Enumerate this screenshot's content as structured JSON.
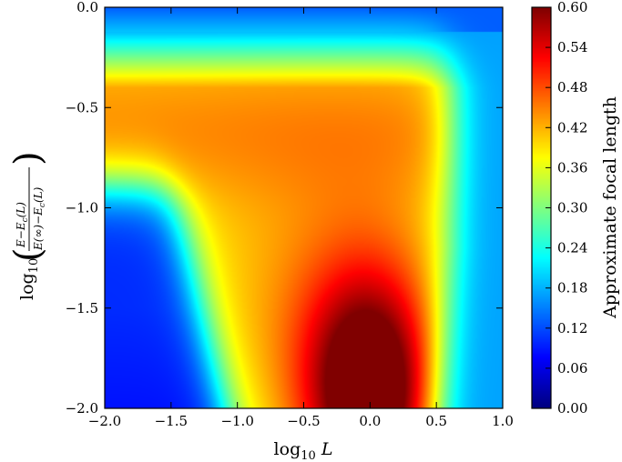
{
  "chart_data": {
    "type": "heatmap",
    "xlabel": "log10 L",
    "ylabel": "log10 ((E − Ec(L)) / (E(∞) − Ec(L)))",
    "xlim": [
      -2.0,
      1.0
    ],
    "ylim": [
      -2.0,
      0.0
    ],
    "x_ticks": [
      "−2.0",
      "−1.5",
      "−1.0",
      "−0.5",
      "0.0",
      "0.5",
      "1.0"
    ],
    "x_tick_values": [
      -2.0,
      -1.5,
      -1.0,
      -0.5,
      0.0,
      0.5,
      1.0
    ],
    "y_ticks": [
      "0.0",
      "−0.5",
      "−1.0",
      "−1.5",
      "−2.0"
    ],
    "y_tick_values": [
      0.0,
      -0.5,
      -1.0,
      -1.5,
      -2.0
    ],
    "colorbar": {
      "label": "Approximate focal length",
      "range": [
        0.0,
        0.6
      ],
      "tick_values": [
        0.0,
        0.06,
        0.12,
        0.18,
        0.24,
        0.3,
        0.36,
        0.42,
        0.48,
        0.54,
        0.6
      ],
      "ticks": [
        "0.00",
        "0.06",
        "0.12",
        "0.18",
        "0.24",
        "0.30",
        "0.36",
        "0.42",
        "0.48",
        "0.54",
        "0.60"
      ],
      "colormap": "jet"
    },
    "grid": false,
    "value_samples": [
      {
        "x": -1.75,
        "y": -0.05,
        "v": 0.15
      },
      {
        "x": -1.5,
        "y": -0.2,
        "v": 0.26
      },
      {
        "x": -1.5,
        "y": -0.6,
        "v": 0.4
      },
      {
        "x": -1.9,
        "y": -1.5,
        "v": 0.1
      },
      {
        "x": -1.9,
        "y": -1.95,
        "v": 0.06
      },
      {
        "x": -1.0,
        "y": -1.5,
        "v": 0.36
      },
      {
        "x": -0.5,
        "y": -1.0,
        "v": 0.4
      },
      {
        "x": 0.0,
        "y": -1.5,
        "v": 0.48
      },
      {
        "x": 0.05,
        "y": -1.9,
        "v": 0.6
      },
      {
        "x": 0.4,
        "y": -1.9,
        "v": 0.44
      },
      {
        "x": 0.7,
        "y": -1.9,
        "v": 0.24
      },
      {
        "x": 0.8,
        "y": -1.0,
        "v": 0.18
      },
      {
        "x": 0.9,
        "y": -0.2,
        "v": 0.15
      }
    ]
  }
}
